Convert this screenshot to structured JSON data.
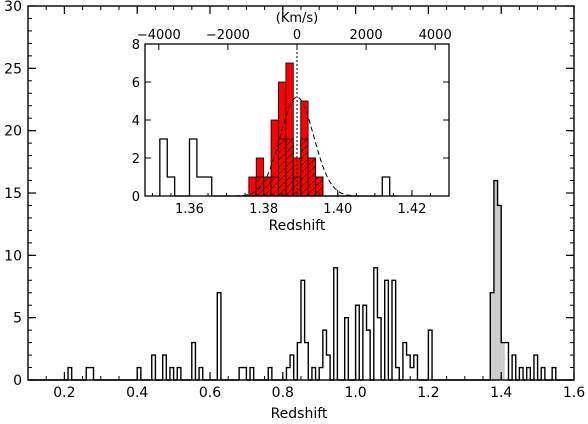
{
  "chart_data": [
    {
      "type": "bar",
      "subtype": "step-histogram",
      "title": "",
      "xlabel": "Redshift",
      "ylabel": "",
      "xlim": [
        0.1,
        1.6
      ],
      "ylim": [
        0,
        30
      ],
      "xticks": [
        "0.2",
        "0.4",
        "0.6",
        "0.8",
        "1.0",
        "1.2",
        "1.4",
        "1.6"
      ],
      "yticks": [
        "0",
        "5",
        "10",
        "15",
        "20",
        "25",
        "30"
      ],
      "bin_width": 0.01,
      "bin_start": 0.1,
      "counts": [
        0,
        0,
        0,
        0,
        0,
        0,
        0,
        0,
        0,
        0,
        0,
        1,
        0,
        0,
        0,
        0,
        1,
        1,
        0,
        0,
        0,
        0,
        0,
        0,
        0,
        0,
        0,
        0,
        0,
        0,
        1,
        0,
        0,
        0,
        2,
        0,
        0,
        2,
        0,
        1,
        0,
        1,
        0,
        0,
        0,
        3,
        0,
        1,
        0,
        0,
        0,
        0,
        7,
        0,
        0,
        0,
        0,
        0,
        1,
        1,
        0,
        1,
        0,
        0,
        0,
        0,
        1,
        0,
        0,
        0,
        0,
        1,
        2,
        0,
        3,
        8,
        3,
        0,
        1,
        0,
        1,
        4,
        2,
        0,
        9,
        0,
        0,
        5,
        0,
        0,
        6,
        0,
        6,
        4,
        0,
        9,
        5,
        0,
        8,
        0,
        8,
        1,
        0,
        3,
        2,
        1,
        2,
        0,
        0,
        0,
        4,
        0,
        0,
        0,
        0,
        0,
        0,
        0,
        0,
        0,
        0,
        0,
        0,
        0,
        0,
        0,
        0,
        0,
        0,
        0,
        0,
        0,
        0,
        0,
        0,
        0,
        0,
        0,
        0,
        0,
        0,
        0,
        0,
        0,
        0,
        0,
        0,
        0,
        0,
        0
      ],
      "shaded_region": {
        "color": "#cccccc",
        "bin_start": 1.37,
        "counts": [
          7,
          16,
          14,
          3
        ]
      },
      "tail_counts": {
        "note_free": true,
        "bin_start": 1.41,
        "counts": [
          3,
          0,
          2,
          0,
          1,
          0,
          1,
          0,
          2,
          0,
          1,
          0,
          0,
          1,
          0,
          0,
          0,
          0,
          0
        ]
      }
    },
    {
      "type": "bar",
      "subtype": "inset-histogram",
      "xlabel": "Redshift",
      "top_axis_label": "(Km/s)",
      "xlim": [
        1.348,
        1.43
      ],
      "ylim": [
        0,
        8
      ],
      "xticks": [
        "1.36",
        "1.38",
        "1.40",
        "1.42"
      ],
      "top_ticks": [
        "−4000",
        "−2000",
        "0",
        "2000",
        "4000"
      ],
      "yticks": [
        "0",
        "2",
        "4",
        "6",
        "8"
      ],
      "bin_width": 0.002,
      "outline_bins": {
        "start": 1.352,
        "counts": [
          3,
          1,
          0,
          0,
          3,
          1,
          1,
          0,
          0,
          0,
          0,
          0,
          0,
          0,
          0,
          0,
          0,
          0,
          0,
          0,
          0,
          0,
          0,
          0,
          0,
          0,
          0,
          0,
          0,
          0,
          1,
          0
        ]
      },
      "red_bins": {
        "color": "#ff0000",
        "start": 1.376,
        "counts": [
          1,
          2,
          1,
          4,
          6,
          7,
          2,
          5,
          2,
          1
        ]
      },
      "hatched_bins": {
        "start": 1.376,
        "counts": [
          0,
          1,
          1,
          1,
          3,
          3,
          1,
          3,
          2,
          1
        ]
      },
      "gaussian": {
        "center": 1.389,
        "sigma": 0.0045,
        "peak": 5.2
      }
    }
  ]
}
